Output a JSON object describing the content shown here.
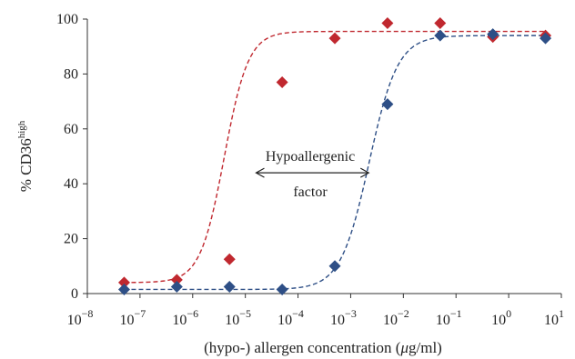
{
  "chart_data": {
    "type": "scatter",
    "title": "",
    "xlabel": "(hypo-) allergen concentration (μg/ml)",
    "xlabel_parts": {
      "before": "(hypo-) allergen concentration (",
      "mu": "μ",
      "after": "g/ml)"
    },
    "ylabel": "% CD36high",
    "ylabel_parts": {
      "main": "% CD36",
      "sup": "high"
    },
    "x_scale": "log",
    "xlim": [
      1e-08,
      10
    ],
    "ylim": [
      0,
      100
    ],
    "x_ticks": [
      {
        "value": 1e-08,
        "base": "10",
        "exp": "−8"
      },
      {
        "value": 1e-07,
        "base": "10",
        "exp": "−7"
      },
      {
        "value": 1e-06,
        "base": "10",
        "exp": "−6"
      },
      {
        "value": 1e-05,
        "base": "10",
        "exp": "−5"
      },
      {
        "value": 0.0001,
        "base": "10",
        "exp": "−4"
      },
      {
        "value": 0.001,
        "base": "10",
        "exp": "−3"
      },
      {
        "value": 0.01,
        "base": "10",
        "exp": "−2"
      },
      {
        "value": 0.1,
        "base": "10",
        "exp": "−1"
      },
      {
        "value": 1,
        "base": "10",
        "exp": "0"
      },
      {
        "value": 10,
        "base": "10",
        "exp": "1"
      }
    ],
    "y_ticks": [
      0,
      20,
      40,
      60,
      80,
      100
    ],
    "grid": false,
    "legend": "none",
    "series": [
      {
        "color": "#c0282f",
        "marker": "diamond",
        "x": [
          5e-08,
          5e-07,
          5e-06,
          5e-05,
          0.0005,
          0.005,
          0.05,
          0.5,
          5
        ],
        "y": [
          4,
          5,
          12.5,
          77,
          93,
          98.5,
          98.5,
          93.5,
          94
        ],
        "fit": {
          "bottom": 4,
          "top": 95.5,
          "log_ec50": -5.4,
          "hill": 1.9
        }
      },
      {
        "color": "#2e4f86",
        "marker": "diamond",
        "x": [
          5e-08,
          5e-07,
          5e-06,
          5e-05,
          0.0005,
          0.005,
          0.05,
          0.5,
          5
        ],
        "y": [
          1.5,
          2.5,
          2.5,
          1.5,
          10,
          69,
          94,
          94.5,
          93
        ],
        "fit": {
          "bottom": 1.5,
          "top": 94,
          "log_ec50": -2.65,
          "hill": 1.6
        }
      }
    ],
    "annotations": [
      {
        "text_top": "Hypoallergenic",
        "text_bottom": "factor",
        "arrow": "double-headed",
        "arrow_from_x": 1.6e-05,
        "arrow_to_x": 0.0022,
        "arrow_y": 44
      }
    ]
  }
}
